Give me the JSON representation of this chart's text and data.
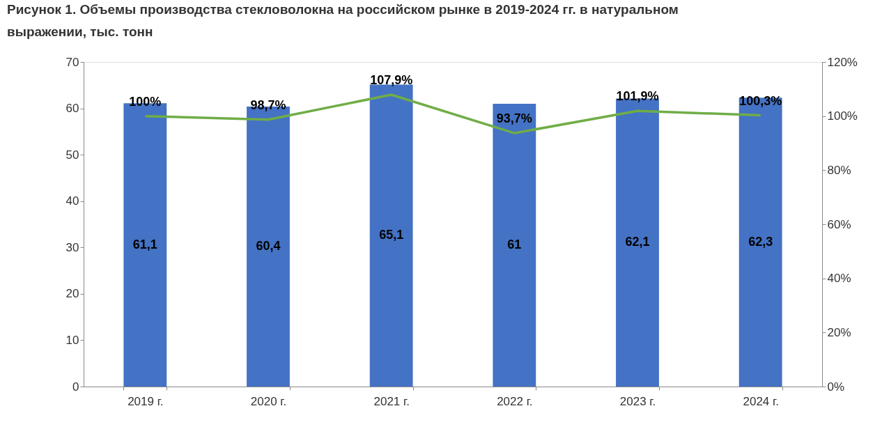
{
  "chart_data": {
    "type": "bar",
    "title": "Рисунок 1. Объемы производства стекловолокна на российском рынке в 2019-2024 гг. в натуральном выражении, тыс. тонн",
    "categories": [
      "2019 г.",
      "2020 г.",
      "2021 г.",
      "2022 г.",
      "2023 г.",
      "2024 г."
    ],
    "series": [
      {
        "color": "#4472c4",
        "values": [
          61.1,
          60.4,
          65.1,
          61,
          62.1,
          62.3
        ],
        "value_labels": [
          "61,1",
          "60,4",
          "65,1",
          "61",
          "62,1",
          "62,3"
        ]
      },
      {
        "type": "line",
        "axis": "y2",
        "color": "#70ad47",
        "values": [
          100,
          98.7,
          107.9,
          93.7,
          101.9,
          100.3
        ],
        "value_labels": [
          "100%",
          "98,7%",
          "107,9%",
          "93,7%",
          "101,9%",
          "100,3%"
        ]
      }
    ],
    "ylim": [
      0,
      70
    ],
    "yticks": [
      0,
      10,
      20,
      30,
      40,
      50,
      60,
      70
    ],
    "y2lim": [
      0,
      120
    ],
    "y2ticks": [
      {
        "value": 0,
        "label": "0%"
      },
      {
        "value": 20,
        "label": "20%"
      },
      {
        "value": 40,
        "label": "40%"
      },
      {
        "value": 60,
        "label": "60%"
      },
      {
        "value": 80,
        "label": "80%"
      },
      {
        "value": 100,
        "label": "100%"
      },
      {
        "value": 120,
        "label": "120%"
      }
    ],
    "grid": false,
    "marker": "none"
  }
}
